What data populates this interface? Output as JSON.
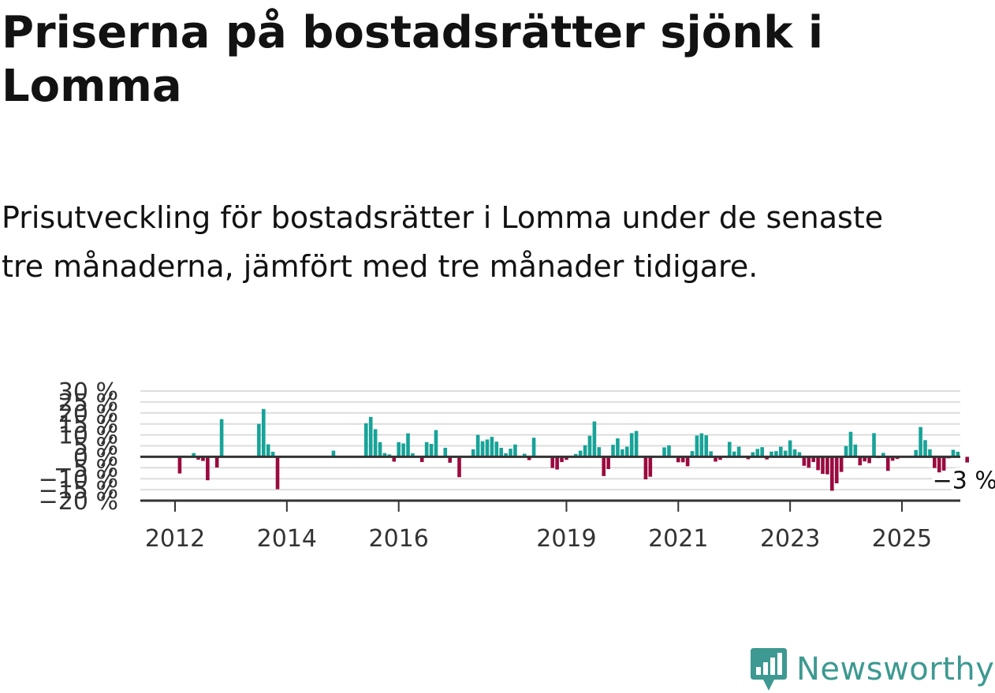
{
  "title": "Priserna på bostadsrätter sjönk i Lomma",
  "subtitle": "Prisutveckling för bostadsrätter i Lomma under de senaste tre månaderna, jämfört med tre månader tidigare.",
  "logo": {
    "text": "Newsworthy",
    "icon": "newsworthy-chart-icon"
  },
  "colors": {
    "positive": "#17a398",
    "negative": "#9a0a3f",
    "grid": "#dddddd",
    "zero_line": "#333333",
    "logo": "#3d9991"
  },
  "chart_data": {
    "type": "bar",
    "unit": "%",
    "ylim": [
      -20,
      30
    ],
    "y_ticks": [
      -20,
      -15,
      -10,
      -5,
      0,
      5,
      10,
      15,
      20,
      25,
      30
    ],
    "y_tick_labels": [
      "−20 %",
      "−15 %",
      "−10 %",
      "−5 %",
      "0 %",
      "5 %",
      "10 %",
      "15 %",
      "20 %",
      "25 %",
      "30 %"
    ],
    "x_start": "2012-01",
    "x_ticks": [
      "2012",
      "2014",
      "2016",
      "2019",
      "2021",
      "2023",
      "2025"
    ],
    "grid": true,
    "values": [
      0,
      -7.6,
      0,
      0.4,
      1.7,
      -1.3,
      -1.9,
      -10.7,
      0,
      -4.9,
      17.2,
      0,
      0,
      0,
      0,
      0,
      0,
      0,
      15.0,
      21.8,
      5.7,
      2.3,
      -14.8,
      0,
      0,
      0,
      0,
      0,
      0,
      0,
      0,
      0,
      0,
      0,
      2.8,
      0,
      0,
      0,
      0,
      0,
      0,
      15.3,
      18.2,
      12.6,
      6.7,
      1.7,
      1.1,
      -2.2,
      6.7,
      6.1,
      10.7,
      1.6,
      0,
      -2.4,
      6.7,
      5.9,
      12.2,
      0,
      4.1,
      -2.7,
      0,
      -9.3,
      0,
      0,
      3.4,
      10.0,
      7.1,
      7.9,
      9.1,
      6.9,
      4.1,
      1.6,
      3.7,
      5.6,
      0,
      1.4,
      -1.5,
      8.7,
      0,
      0,
      0,
      -5.1,
      -5.8,
      -2.4,
      -1.4,
      0,
      1.3,
      2.8,
      5.3,
      9.6,
      16.1,
      4.4,
      -8.8,
      -5.6,
      5.5,
      8.4,
      3.4,
      4.6,
      10.8,
      11.8,
      0,
      -10.3,
      -9.1,
      0,
      0,
      4.3,
      5.2,
      0,
      -2.5,
      -2.5,
      -4.3,
      2.6,
      9.7,
      10.7,
      9.8,
      2.5,
      -2.2,
      -1.4,
      0,
      6.8,
      2.4,
      4.6,
      0,
      -1.1,
      2.1,
      3.6,
      4.4,
      -1.2,
      2.4,
      2.6,
      4.6,
      2.8,
      7.5,
      3.4,
      2.1,
      -4.1,
      -5.0,
      -2.4,
      -6.1,
      -7.8,
      -8.0,
      -15.5,
      -12.1,
      -6.9,
      4.9,
      11.4,
      5.6,
      -3.9,
      -2.1,
      -2.9,
      10.8,
      -0.6,
      1.8,
      -6.4,
      -1.8,
      -1.0,
      0.5,
      0.3,
      0,
      3.1,
      13.6,
      7.6,
      3.4,
      -5.1,
      -7.1,
      -6.3,
      -0.7,
      3.2,
      2.3,
      0,
      -2.6
    ],
    "last_value_label": "−3 %"
  }
}
